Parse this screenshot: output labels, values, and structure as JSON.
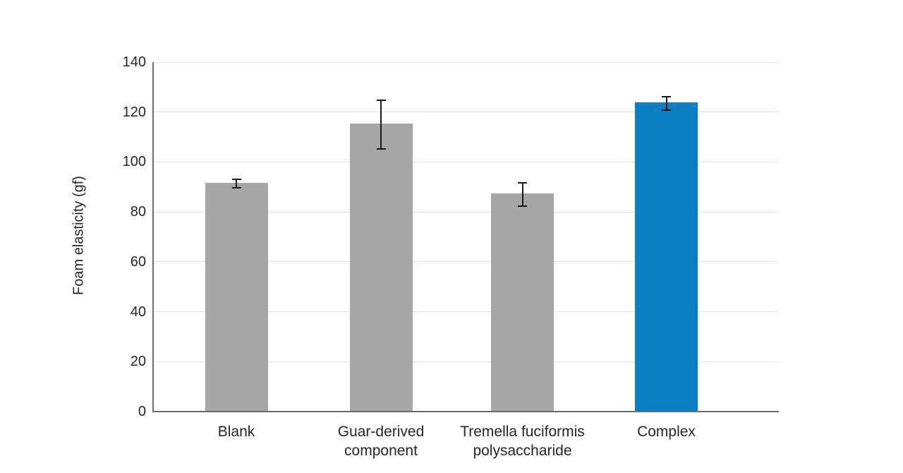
{
  "chart_data": {
    "type": "bar",
    "title": "",
    "categories": [
      "Blank",
      "Guar-derived\ncomponent",
      "Tremella fuciformis\npolysaccharide",
      "Complex"
    ],
    "values": [
      91.3,
      115,
      87,
      123.5
    ],
    "error_bars": [
      2,
      10,
      5,
      3
    ],
    "bar_colors": [
      "#a6a6a6",
      "#a6a6a6",
      "#a6a6a6",
      "#0a7fc4"
    ],
    "error_bar_color": "#1a1a1a",
    "xlabel": "",
    "ylabel": "Foam elasticity (gf)",
    "ylim": [
      0,
      140
    ],
    "yticks": [
      0,
      20,
      40,
      60,
      80,
      100,
      120,
      140
    ],
    "grid": "horizontal",
    "legend": false,
    "colors": {
      "axis": "#6b6b6b",
      "gridline": "#e4e4e4",
      "text": "#262626",
      "background": "#ffffff"
    }
  }
}
